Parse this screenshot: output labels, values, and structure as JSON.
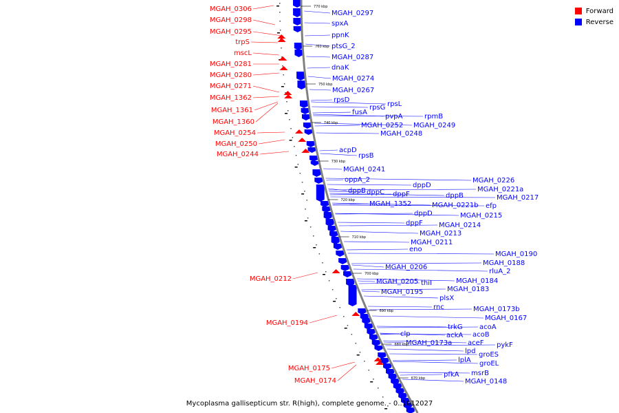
{
  "legend": {
    "forward": "Forward",
    "reverse": "Reverse",
    "forward_color": "#ff0000",
    "reverse_color": "#0000ff"
  },
  "footer": {
    "caption": "Mycoplasma gallisepticum str. R(high), complete genome. - 0..1012027"
  },
  "ruler": [
    "770 kbp",
    "760 kbp",
    "750 kbp",
    "740 kbp",
    "730 kbp",
    "720 kbp",
    "710 kbp",
    "700 kbp",
    "690 kbp",
    "680 kbp",
    "670 kbp"
  ],
  "forward_labels": [
    "MGAH_0306",
    "MGAH_0298",
    "MGAH_0295",
    "trpS",
    "mscL",
    "MGAH_0281",
    "MGAH_0280",
    "MGAH_0271",
    "MGAH_1362",
    "MGAH_1361",
    "MGAH_1360",
    "MGAH_0254",
    "MGAH_0250",
    "MGAH_0244",
    "MGAH_0212",
    "MGAH_0194",
    "MGAH_0175",
    "MGAH_0174"
  ],
  "reverse_labels": [
    "MGAH_0297",
    "spxA",
    "ppnK",
    "ptsG_2",
    "MGAH_0287",
    "dnaK",
    "MGAH_0274",
    "MGAH_0267",
    "rpsD",
    "rpsL",
    "rpsG",
    "fusA",
    "pvpA",
    "rpmB",
    "MGAH_0252",
    "MGAH_0249",
    "MGAH_0248",
    "acpD",
    "rpsB",
    "MGAH_0241",
    "oppA_2",
    "MGAH_0226",
    "dppD",
    "MGAH_0221a",
    "dppB",
    "dppC",
    "dppF",
    "dppB",
    "MGAH_0217",
    "MGAH_1352",
    "MGAH_0221b",
    "efp",
    "dppD",
    "MGAH_0215",
    "dppF",
    "MGAH_0214",
    "MGAH_0213",
    "MGAH_0211",
    "eno",
    "MGAH_0206",
    "MGAH_0190",
    "MGAH_0188",
    "rluA_2",
    "MGAH_0205",
    "thiI",
    "MGAH_0184",
    "MGAH_0195",
    "MGAH_0183",
    "plsX",
    "rnc",
    "MGAH_0173b",
    "MGAH_0167",
    "trkG",
    "acoA",
    "ackA",
    "acoB",
    "clp",
    "aceF",
    "MGAH_0173a",
    "pykF",
    "lpd",
    "groES",
    "lplA",
    "groEL",
    "msrB",
    "pfkA",
    "MGAH_0148"
  ]
}
